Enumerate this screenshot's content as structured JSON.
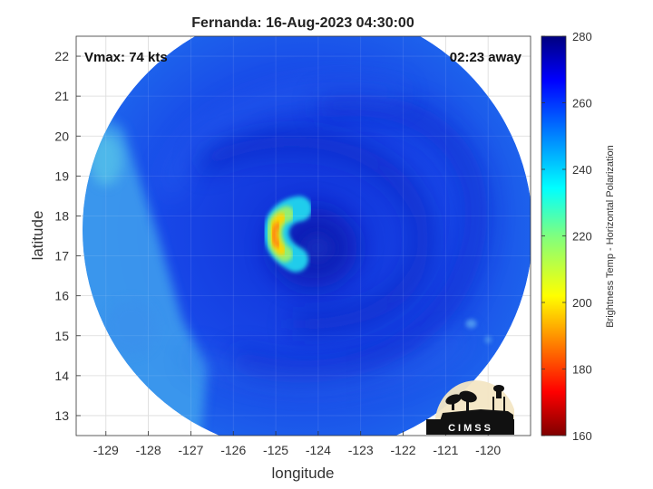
{
  "chart_data": {
    "type": "heatmap",
    "title": "Fernanda: 16-Aug-2023 04:30:00",
    "xlabel": "longitude",
    "ylabel": "latitude",
    "xlim": [
      -129.7,
      -119.0
    ],
    "ylim": [
      12.5,
      22.5
    ],
    "xticks": [
      -129,
      -128,
      -127,
      -126,
      -125,
      -124,
      -123,
      -122,
      -121,
      -120
    ],
    "xtick_labels": [
      "-129",
      "-128",
      "-127",
      "-126",
      "-125",
      "-124",
      "-123",
      "-122",
      "-121",
      "-120"
    ],
    "yticks": [
      13,
      14,
      15,
      16,
      17,
      18,
      19,
      20,
      21,
      22
    ],
    "ytick_labels": [
      "13",
      "14",
      "15",
      "16",
      "17",
      "18",
      "19",
      "20",
      "21",
      "22"
    ],
    "grid": true,
    "colorbar": {
      "label": "Brightness Temp - Horizontal Polarization",
      "range": [
        160,
        280
      ],
      "ticks": [
        160,
        180,
        200,
        220,
        240,
        260,
        280
      ],
      "tick_labels": [
        "160",
        "180",
        "200",
        "220",
        "240",
        "260",
        "280"
      ],
      "colormap": "jet"
    },
    "annotations": {
      "vmax": "Vmax: 74 kts",
      "time_offset": "02:23 away"
    },
    "storm_center": {
      "lon": -124.1,
      "lat": 17.2
    },
    "swath": {
      "center_lon": -124.25,
      "center_lat": 17.65,
      "radius_lon": 5.3,
      "radius_lat": 5.6
    },
    "features": [
      {
        "name": "eyewall-arc",
        "lon": -125.0,
        "lat": 17.5,
        "min_temp": 185
      },
      {
        "name": "warm-background",
        "temp": 262
      },
      {
        "name": "moist-inflow-west",
        "lon": -128.8,
        "lat": 18.0,
        "temp": 238
      }
    ],
    "logo": "CIMSS"
  }
}
